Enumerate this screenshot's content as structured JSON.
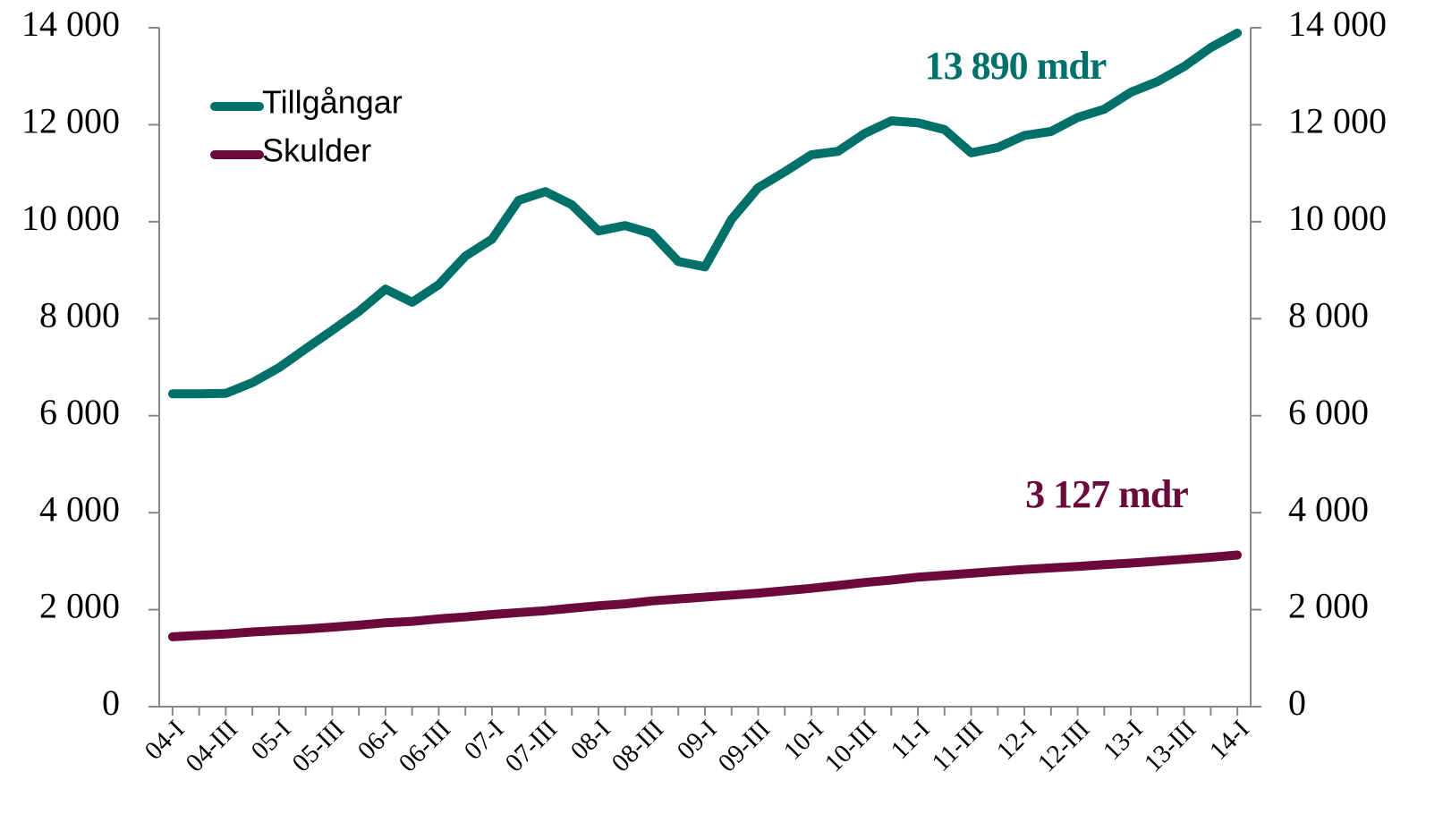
{
  "chart_data": {
    "type": "line",
    "categories": [
      "04-I",
      null,
      "04-III",
      null,
      "05-I",
      null,
      "05-III",
      null,
      "06-I",
      null,
      "06-III",
      null,
      "07-I",
      null,
      "07-III",
      null,
      "08-I",
      null,
      "08-III",
      null,
      "09-I",
      null,
      "09-III",
      null,
      "10-I",
      null,
      "10-III",
      null,
      "11-I",
      null,
      "11-III",
      null,
      "12-I",
      null,
      "12-III",
      null,
      "13-I",
      null,
      "13-III",
      null,
      "14-I"
    ],
    "series": [
      {
        "name": "Tillgångar",
        "color": "#00706b",
        "values": [
          6450,
          6450,
          6460,
          6680,
          6990,
          7380,
          7760,
          8150,
          8610,
          8340,
          8700,
          9290,
          9640,
          10440,
          10620,
          10350,
          9810,
          9920,
          9760,
          9180,
          9070,
          10050,
          10700,
          11030,
          11380,
          11450,
          11820,
          12080,
          12040,
          11900,
          11420,
          11530,
          11780,
          11860,
          12150,
          12320,
          12670,
          12890,
          13200,
          13590,
          13890
        ]
      },
      {
        "name": "Skulder",
        "color": "#6b0a3a",
        "values": [
          1440,
          1470,
          1500,
          1540,
          1570,
          1600,
          1640,
          1680,
          1730,
          1760,
          1810,
          1850,
          1900,
          1940,
          1980,
          2030,
          2080,
          2120,
          2180,
          2220,
          2260,
          2300,
          2340,
          2390,
          2440,
          2500,
          2560,
          2610,
          2670,
          2710,
          2750,
          2790,
          2830,
          2860,
          2890,
          2930,
          2960,
          3000,
          3040,
          3080,
          3127
        ]
      }
    ],
    "annotations": [
      {
        "text": "13 890 mdr",
        "series": 0
      },
      {
        "text": "3 127 mdr",
        "series": 1
      }
    ],
    "ylim": [
      0,
      14000
    ],
    "yticks": [
      0,
      {
        "value": 2000,
        "label": "2 000"
      },
      {
        "value": 4000,
        "label": "4 000"
      },
      {
        "value": 6000,
        "label": "6 000"
      },
      {
        "value": 8000,
        "label": "8 000"
      },
      {
        "value": 10000,
        "label": "10 000"
      },
      {
        "value": 12000,
        "label": "12 000"
      },
      {
        "value": 14000,
        "label": "14 000"
      }
    ],
    "y2lim": [
      0,
      14000
    ],
    "y2ticks": [
      0,
      {
        "value": 2000,
        "label": "2 000"
      },
      {
        "value": 4000,
        "label": "4 000"
      },
      {
        "value": 6000,
        "label": "6 000"
      },
      {
        "value": 8000,
        "label": "8 000"
      },
      {
        "value": 10000,
        "label": "10 000"
      },
      {
        "value": 12000,
        "label": "12 000"
      },
      {
        "value": 14000,
        "label": "14 000"
      }
    ],
    "legend": "upper left",
    "grid": false
  }
}
